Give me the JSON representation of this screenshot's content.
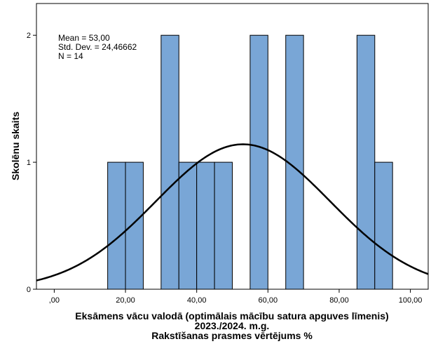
{
  "chart_data": {
    "type": "bar",
    "subtype": "histogram",
    "title": "",
    "xlabel_lines": [
      "Eksāmens vācu valodā (optimālais mācību satura apguves līmenis)",
      "2023./2024. m.g.",
      "Rakstīšanas prasmes vērtējums %"
    ],
    "ylabel": "Skolēnu skaits",
    "xlim": [
      -5,
      105
    ],
    "ylim": [
      0,
      2.25
    ],
    "x_ticks": [
      0,
      20,
      40,
      60,
      80,
      100
    ],
    "x_tick_labels": [
      ",00",
      "20,00",
      "40,00",
      "60,00",
      "80,00",
      "100,00"
    ],
    "y_ticks": [
      0,
      1,
      2
    ],
    "y_tick_labels": [
      "0",
      "1",
      "2"
    ],
    "bin_width": 5,
    "bins": [
      {
        "start": 15,
        "end": 20,
        "count": 1
      },
      {
        "start": 20,
        "end": 25,
        "count": 1
      },
      {
        "start": 30,
        "end": 35,
        "count": 2
      },
      {
        "start": 35,
        "end": 40,
        "count": 1
      },
      {
        "start": 40,
        "end": 45,
        "count": 1
      },
      {
        "start": 45,
        "end": 50,
        "count": 1
      },
      {
        "start": 55,
        "end": 60,
        "count": 2
      },
      {
        "start": 65,
        "end": 70,
        "count": 2
      },
      {
        "start": 85,
        "end": 90,
        "count": 2
      },
      {
        "start": 90,
        "end": 95,
        "count": 1
      }
    ],
    "bar_color": "#79a6d6",
    "normal_curve": {
      "mean": 53.0,
      "std_dev": 24.46662,
      "n": 14
    },
    "stats_box": [
      "Mean = 53,00",
      "Std. Dev. = 24,46662",
      "N = 14"
    ],
    "legend_placement": "top-left",
    "grid": false
  }
}
